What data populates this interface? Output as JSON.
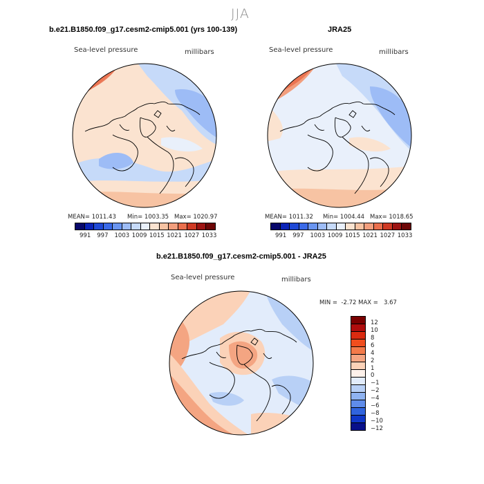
{
  "page_title": "JJA",
  "panels": [
    {
      "title": "b.e21.B1850.f09_g17.cesm2-cmip5.001 (yrs 100-139)",
      "variable": "Sea-level pressure",
      "units": "millibars",
      "mean_label": "MEAN= 1011.43",
      "min_label": "Min= 1003.35",
      "max_label": "Max= 1020.97",
      "colorbar_ticks": [
        "991",
        "997",
        "1003",
        "1009",
        "1015",
        "1021",
        "1027",
        "1033"
      ]
    },
    {
      "title": "JRA25",
      "variable": "Sea-level pressure",
      "units": "millibars",
      "mean_label": "MEAN= 1011.32",
      "min_label": "Min= 1004.44",
      "max_label": "Max= 1018.65",
      "colorbar_ticks": [
        "991",
        "997",
        "1003",
        "1009",
        "1015",
        "1021",
        "1027",
        "1033"
      ]
    }
  ],
  "diff_panel": {
    "title": "b.e21.B1850.f09_g17.cesm2-cmip5.001 - JRA25",
    "variable": "Sea-level pressure",
    "units": "millibars",
    "minmax_label": "MIN =  -2.72 MAX =   3.67",
    "colorbar_ticks": [
      "12",
      "10",
      "8",
      "6",
      "4",
      "2",
      "1",
      "0",
      "-1",
      "-2",
      "-4",
      "-6",
      "-8",
      "-10",
      "-12"
    ]
  },
  "colors": {
    "slp_scale": [
      "#08086b",
      "#0a23b8",
      "#1f49d6",
      "#3a6ae8",
      "#6a95f0",
      "#9dbcf6",
      "#c6daf9",
      "#e9f0fb",
      "#fbe3d0",
      "#f7c3a3",
      "#f29e7d",
      "#ea6f4d",
      "#cf3a24",
      "#9d1412",
      "#6d0606"
    ],
    "diff_scale": [
      "#7a0000",
      "#b00d0d",
      "#db2b10",
      "#f04e1e",
      "#f37a4a",
      "#f4a582",
      "#fbd2b8",
      "#fdf1ea",
      "#e2ecfb",
      "#b8d0f6",
      "#8fb3f1",
      "#5f8cea",
      "#3064de",
      "#0f37c8",
      "#08108a"
    ]
  }
}
